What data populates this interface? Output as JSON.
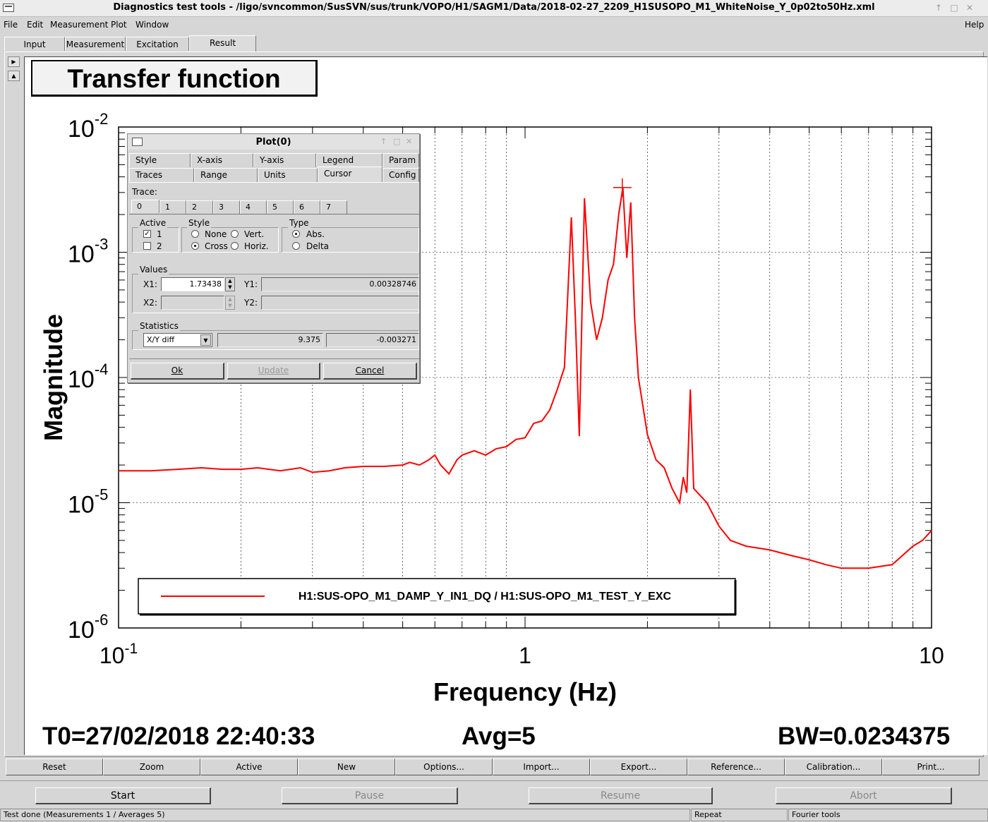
{
  "window": {
    "title": "Diagnostics test tools - /ligo/svncommon/SusSVN/sus/trunk/VOPO/H1/SAGM1/Data/2018-02-27_2209_H1SUSOPO_M1_WhiteNoise_Y_0p02to50Hz.xml",
    "controls": [
      "↑",
      "□",
      "✕"
    ]
  },
  "menu": {
    "file": "File",
    "edit": "Edit",
    "measurement": "Measurement",
    "plot": "Plot",
    "window": "Window",
    "help": "Help"
  },
  "tabs": [
    "Input",
    "Measurement",
    "Excitation",
    "Result"
  ],
  "plot": {
    "title": "Transfer function",
    "t0": "T0=27/02/2018 22:40:33",
    "avg": "Avg=5",
    "bw": "BW=0.0234375",
    "legend": "H1:SUS-OPO_M1_DAMP_Y_IN1_DQ / H1:SUS-OPO_M1_TEST_Y_EXC"
  },
  "chart_data": {
    "type": "line",
    "xlabel": "Frequency (Hz)",
    "ylabel": "Magnitude",
    "xscale": "log",
    "yscale": "log",
    "xlim": [
      0.1,
      10
    ],
    "ylim": [
      1e-06,
      0.01
    ],
    "x_tick_labels": [
      {
        "base": "10",
        "exp": "-1"
      },
      {
        "base": "1",
        "exp": ""
      },
      {
        "base": "10",
        "exp": ""
      }
    ],
    "y_tick_labels": [
      {
        "base": "10",
        "exp": "-2"
      },
      {
        "base": "10",
        "exp": "-3"
      },
      {
        "base": "10",
        "exp": "-4"
      },
      {
        "base": "10",
        "exp": "-5"
      },
      {
        "base": "10",
        "exp": "-6"
      }
    ],
    "grid": true,
    "legend_position": "bottom-center",
    "series": [
      {
        "name": "H1:SUS-OPO_M1_DAMP_Y_IN1_DQ / H1:SUS-OPO_M1_TEST_Y_EXC",
        "color": "#ff0000",
        "x": [
          0.1,
          0.12,
          0.14,
          0.16,
          0.18,
          0.2,
          0.22,
          0.25,
          0.28,
          0.3,
          0.33,
          0.36,
          0.4,
          0.45,
          0.5,
          0.52,
          0.55,
          0.58,
          0.6,
          0.62,
          0.65,
          0.68,
          0.7,
          0.75,
          0.8,
          0.85,
          0.9,
          0.95,
          1.0,
          1.05,
          1.1,
          1.15,
          1.2,
          1.25,
          1.3,
          1.33,
          1.36,
          1.4,
          1.45,
          1.5,
          1.55,
          1.6,
          1.65,
          1.7,
          1.74,
          1.78,
          1.82,
          1.86,
          1.9,
          2.0,
          2.1,
          2.2,
          2.3,
          2.4,
          2.45,
          2.5,
          2.55,
          2.6,
          2.8,
          3.0,
          3.2,
          3.5,
          4.0,
          4.5,
          5.0,
          5.5,
          6.0,
          7.0,
          8.0,
          9.0,
          9.5,
          10.0
        ],
        "y": [
          1.8e-05,
          1.8e-05,
          1.85e-05,
          1.9e-05,
          1.85e-05,
          1.85e-05,
          1.9e-05,
          1.8e-05,
          1.9e-05,
          1.75e-05,
          1.8e-05,
          1.9e-05,
          1.95e-05,
          1.95e-05,
          2e-05,
          2.1e-05,
          2e-05,
          2.2e-05,
          2.4e-05,
          2e-05,
          1.7e-05,
          2.2e-05,
          2.4e-05,
          2.6e-05,
          2.4e-05,
          2.7e-05,
          2.8e-05,
          3.2e-05,
          3.3e-05,
          4.3e-05,
          4.5e-05,
          5.5e-05,
          8e-05,
          0.00012,
          0.0019,
          0.0003,
          3.4e-05,
          0.0027,
          0.0004,
          0.0002,
          0.0003,
          0.0006,
          0.0008,
          0.002,
          0.0033,
          0.0009,
          0.0025,
          0.0003,
          0.0001,
          3.5e-05,
          2.2e-05,
          1.9e-05,
          1.3e-05,
          1e-05,
          1.6e-05,
          1.2e-05,
          8e-05,
          1.3e-05,
          1e-05,
          6.5e-06,
          5e-06,
          4.5e-06,
          4.2e-06,
          3.8e-06,
          3.5e-06,
          3.2e-06,
          3e-06,
          3e-06,
          3.2e-06,
          4.5e-06,
          5e-06,
          6e-06
        ]
      }
    ],
    "cursor": {
      "x": 1.73438,
      "y": 0.00328746
    }
  },
  "dialog": {
    "title": "Plot(0)",
    "tabs_row1": [
      "Style",
      "X-axis",
      "Y-axis",
      "Legend",
      "Param"
    ],
    "tabs_row2": [
      "Traces",
      "Range",
      "Units",
      "Cursor",
      "Config"
    ],
    "trace_label": "Trace:",
    "trace_tabs": [
      "0",
      "1",
      "2",
      "3",
      "4",
      "5",
      "6",
      "7"
    ],
    "active_label": "Active",
    "active_1": "1",
    "active_2": "2",
    "style_label": "Style",
    "style_none": "None",
    "style_cross": "Cross",
    "style_vert": "Vert.",
    "style_horiz": "Horiz.",
    "type_label": "Type",
    "type_abs": "Abs.",
    "type_delta": "Delta",
    "values_label": "Values",
    "x1_label": "X1:",
    "x1_value": "1.73438",
    "y1_label": "Y1:",
    "y1_value": "0.00328746",
    "x2_label": "X2:",
    "y2_label": "Y2:",
    "statistics_label": "Statistics",
    "stat_select": "X/Y diff",
    "stat_value1": "9.375",
    "stat_value2": "-0.003271",
    "ok": "Ok",
    "update": "Update",
    "cancel": "Cancel"
  },
  "toolbar": [
    "Reset",
    "Zoom",
    "Active",
    "New",
    "Options...",
    "Import...",
    "Export...",
    "Reference...",
    "Calibration...",
    "Print..."
  ],
  "controls": {
    "start": "Start",
    "pause": "Pause",
    "resume": "Resume",
    "abort": "Abort"
  },
  "status": {
    "message": "Test done (Measurements 1 / Averages 5)",
    "repeat": "Repeat",
    "tool": "Fourier tools"
  }
}
